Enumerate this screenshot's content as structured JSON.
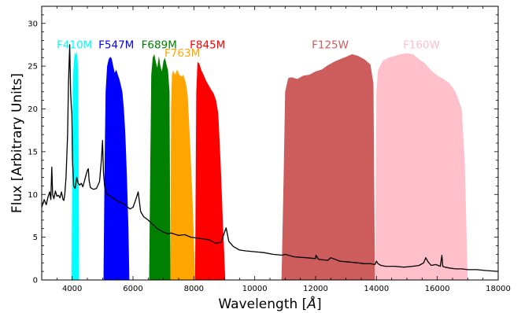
{
  "chart_data": {
    "type": "area",
    "title": "",
    "xlabel": "Wavelength [",
    "xlabel_unit": "Å",
    "xlabel_close": "]",
    "ylabel": "Flux [Arbitrary Units]",
    "xlim": [
      3000,
      18000
    ],
    "ylim": [
      0,
      32
    ],
    "grid": false,
    "x_ticks": [
      {
        "value": 4000,
        "label": "4000"
      },
      {
        "value": 6000,
        "label": "6000"
      },
      {
        "value": 8000,
        "label": "8000"
      },
      {
        "value": 10000,
        "label": "10000"
      },
      {
        "value": 12000,
        "label": "12000"
      },
      {
        "value": 14000,
        "label": "14000"
      },
      {
        "value": 16000,
        "label": "16000"
      },
      {
        "value": 18000,
        "label": "18000"
      }
    ],
    "y_ticks": [
      {
        "value": 0,
        "label": "0"
      },
      {
        "value": 5,
        "label": "5"
      },
      {
        "value": 10,
        "label": "10"
      },
      {
        "value": 15,
        "label": "15"
      },
      {
        "value": 20,
        "label": "20"
      },
      {
        "value": 25,
        "label": "25"
      },
      {
        "value": 30,
        "label": "30"
      }
    ],
    "filters": [
      {
        "name": "F410M",
        "color": "#00ffff",
        "label_x": 4080,
        "label_y": 27.1,
        "x": [
          3980,
          4020,
          4040,
          4070,
          4100,
          4130,
          4160,
          4190,
          4200,
          4230
        ],
        "y": [
          0,
          22.0,
          24.5,
          26.0,
          26.6,
          26.3,
          26.8,
          25.0,
          24.0,
          0
        ]
      },
      {
        "name": "F547M",
        "color": "#0000ff",
        "label_x": 5450,
        "label_y": 27.1,
        "x": [
          5030,
          5070,
          5100,
          5150,
          5200,
          5250,
          5300,
          5350,
          5400,
          5450,
          5500,
          5550,
          5600,
          5650,
          5700,
          5750,
          5800,
          5850,
          5880
        ],
        "y": [
          0,
          14.0,
          22.0,
          25.0,
          25.8,
          26.1,
          25.9,
          25.0,
          24.2,
          24.6,
          24.0,
          23.5,
          22.8,
          22.0,
          20.0,
          17.0,
          12.0,
          6.0,
          0
        ]
      },
      {
        "name": "F689M",
        "color": "#008000",
        "label_x": 6860,
        "label_y": 27.1,
        "x": [
          6530,
          6570,
          6600,
          6650,
          6700,
          6750,
          6800,
          6850,
          6900,
          6950,
          7000,
          7050,
          7100,
          7150,
          7200,
          7230
        ],
        "y": [
          0,
          14.0,
          24.0,
          26.0,
          26.4,
          25.5,
          24.8,
          26.2,
          25.0,
          24.4,
          25.6,
          26.0,
          25.2,
          24.5,
          22.0,
          0
        ]
      },
      {
        "name": "F763M",
        "color": "#ffa500",
        "label_x": 7620,
        "label_y": 26.1,
        "x": [
          7230,
          7250,
          7280,
          7320,
          7380,
          7450,
          7520,
          7600,
          7650,
          7700,
          7750,
          7800,
          7850,
          7900,
          7950,
          8000,
          8040
        ],
        "y": [
          0,
          20.0,
          24.0,
          24.5,
          24.0,
          24.6,
          24.0,
          23.8,
          24.0,
          23.5,
          22.8,
          21.5,
          18.0,
          14.0,
          10.0,
          5.0,
          0
        ]
      },
      {
        "name": "F845M",
        "color": "#ff0000",
        "label_x": 8450,
        "label_y": 27.1,
        "x": [
          8040,
          8080,
          8120,
          8180,
          8250,
          8320,
          8400,
          8480,
          8560,
          8650,
          8730,
          8800,
          8850,
          8900,
          8950,
          9000,
          9030
        ],
        "y": [
          0,
          22.0,
          25.5,
          25.3,
          24.5,
          24.0,
          23.3,
          22.8,
          22.3,
          21.8,
          21.0,
          19.5,
          16.0,
          12.0,
          7.0,
          3.0,
          0
        ]
      },
      {
        "name": "F125W",
        "color": "#cd5c5c",
        "label_x": 12480,
        "label_y": 27.1,
        "x": [
          10880,
          10950,
          11000,
          11100,
          11200,
          11400,
          11600,
          11800,
          12000,
          12200,
          12400,
          12600,
          12800,
          13000,
          13200,
          13400,
          13600,
          13800,
          13900,
          13950
        ],
        "y": [
          0,
          12.0,
          22.0,
          23.6,
          23.7,
          23.5,
          23.9,
          24.0,
          24.4,
          24.6,
          25.1,
          25.5,
          25.8,
          26.1,
          26.4,
          26.2,
          25.8,
          25.2,
          23.0,
          0
        ]
      },
      {
        "name": "F160W",
        "color": "#ffc0cb",
        "label_x": 15480,
        "label_y": 27.1,
        "x": [
          13950,
          14000,
          14050,
          14200,
          14400,
          14600,
          14800,
          15000,
          15200,
          15400,
          15600,
          15800,
          16000,
          16200,
          16400,
          16600,
          16800,
          16900,
          17000
        ],
        "y": [
          0,
          22.0,
          24.5,
          25.6,
          26.0,
          26.2,
          26.4,
          26.5,
          26.4,
          25.8,
          25.3,
          24.5,
          23.9,
          23.5,
          23.0,
          22.0,
          20.0,
          14.0,
          0
        ]
      }
    ],
    "spectrum": {
      "color": "#000000",
      "x": [
        3000,
        3080,
        3150,
        3200,
        3260,
        3300,
        3330,
        3360,
        3400,
        3450,
        3500,
        3550,
        3600,
        3650,
        3700,
        3730,
        3760,
        3800,
        3850,
        3880,
        3920,
        3950,
        3970,
        3990,
        4010,
        4050,
        4100,
        4150,
        4200,
        4250,
        4300,
        4350,
        4400,
        4450,
        4500,
        4530,
        4560,
        4600,
        4700,
        4800,
        4900,
        4960,
        5000,
        5030,
        5070,
        5150,
        5300,
        5500,
        5700,
        5900,
        6000,
        6100,
        6170,
        6250,
        6350,
        6500,
        6650,
        6800,
        7000,
        7150,
        7250,
        7500,
        7700,
        7900,
        8100,
        8300,
        8500,
        8700,
        8900,
        9000,
        9060,
        9150,
        9300,
        9500,
        9700,
        10000,
        10300,
        10600,
        10900,
        11000,
        11300,
        11700,
        12000,
        12010,
        12100,
        12400,
        12500,
        12800,
        13100,
        13400,
        13600,
        13800,
        13950,
        14000,
        14050,
        14150,
        14300,
        14600,
        14900,
        15200,
        15400,
        15550,
        15620,
        15700,
        15800,
        15950,
        16100,
        16150,
        16180,
        16250,
        16400,
        16600,
        16800,
        17000,
        17300,
        17600,
        18000
      ],
      "y": [
        8.5,
        9.4,
        8.8,
        9.6,
        10.3,
        9.4,
        13.2,
        10.0,
        9.5,
        10.4,
        9.8,
        9.9,
        9.6,
        10.3,
        9.4,
        9.3,
        10.1,
        12.0,
        17.0,
        23.0,
        27.5,
        22.0,
        20.5,
        19.5,
        14.0,
        11.0,
        10.7,
        12.0,
        11.3,
        11.1,
        11.3,
        10.9,
        11.5,
        12.2,
        12.8,
        13.0,
        11.6,
        10.8,
        10.6,
        10.7,
        11.5,
        14.0,
        16.3,
        12.5,
        10.9,
        10.0,
        9.7,
        9.2,
        8.9,
        8.3,
        8.5,
        9.5,
        10.3,
        8.0,
        7.4,
        7.0,
        6.5,
        6.0,
        5.6,
        5.4,
        5.5,
        5.2,
        5.3,
        5.0,
        4.9,
        4.8,
        4.7,
        4.3,
        4.4,
        5.5,
        6.1,
        4.5,
        3.9,
        3.5,
        3.4,
        3.3,
        3.2,
        3.0,
        2.9,
        3.0,
        2.7,
        2.6,
        2.5,
        2.9,
        2.4,
        2.3,
        2.6,
        2.2,
        2.1,
        2.0,
        1.9,
        1.9,
        1.8,
        2.2,
        1.9,
        1.7,
        1.6,
        1.6,
        1.5,
        1.6,
        1.7,
        2.0,
        2.6,
        2.1,
        1.7,
        1.8,
        1.6,
        2.9,
        1.6,
        1.5,
        1.4,
        1.3,
        1.3,
        1.2,
        1.2,
        1.1,
        1.0
      ]
    }
  }
}
